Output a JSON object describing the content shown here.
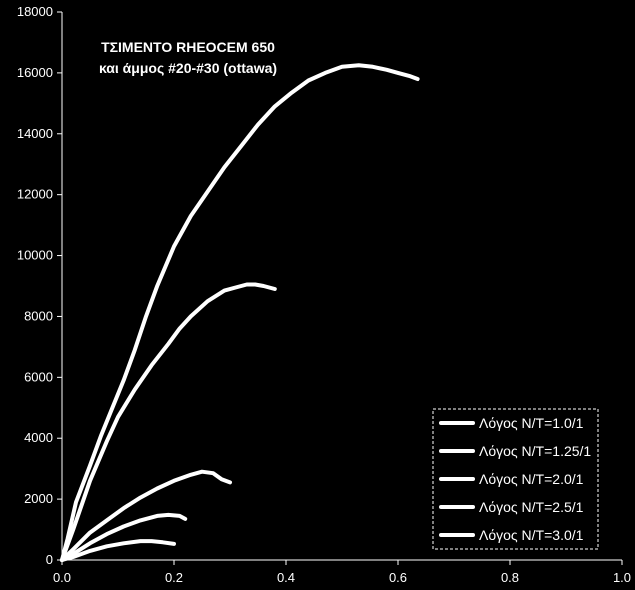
{
  "chart_data": {
    "type": "line",
    "title": [
      "ΤΣΙΜΕΝΤΟ RHEOCEM 650",
      "και άμμος #20-#30 (ottawa)"
    ],
    "xlabel": "",
    "ylabel": "",
    "xlim": [
      0.0,
      1.0
    ],
    "ylim": [
      0,
      18000
    ],
    "x_ticks": [
      "0.0",
      "0.2",
      "0.4",
      "0.6",
      "0.8",
      "1.0"
    ],
    "y_ticks": [
      "0",
      "2000",
      "4000",
      "6000",
      "8000",
      "10000",
      "12000",
      "14000",
      "16000",
      "18000"
    ],
    "grid": false,
    "legend_position": "bottom-right",
    "colors": {
      "background": "#000000",
      "foreground": "#ffffff"
    },
    "series": [
      {
        "name": "Λόγος Ν/Τ=1.0/1",
        "x": [
          0.0,
          0.01,
          0.025,
          0.05,
          0.07,
          0.09,
          0.11,
          0.13,
          0.15,
          0.17,
          0.2,
          0.23,
          0.26,
          0.29,
          0.32,
          0.35,
          0.38,
          0.41,
          0.44,
          0.47,
          0.5,
          0.53,
          0.555,
          0.58,
          0.6,
          0.62,
          0.635
        ],
        "y": [
          0,
          700,
          1900,
          3100,
          4100,
          5000,
          5900,
          6900,
          8000,
          9000,
          10300,
          11300,
          12100,
          12900,
          13600,
          14300,
          14900,
          15350,
          15750,
          16000,
          16200,
          16250,
          16200,
          16100,
          16000,
          15900,
          15800
        ]
      },
      {
        "name": "Λόγος Ν/Τ=1.25/1",
        "x": [
          0.0,
          0.02,
          0.05,
          0.08,
          0.1,
          0.13,
          0.16,
          0.19,
          0.21,
          0.23,
          0.26,
          0.29,
          0.31,
          0.33,
          0.345,
          0.36,
          0.38
        ],
        "y": [
          0,
          1000,
          2600,
          3900,
          4700,
          5600,
          6400,
          7100,
          7600,
          8000,
          8500,
          8850,
          8950,
          9050,
          9050,
          9000,
          8900
        ]
      },
      {
        "name": "Λόγος Ν/Τ=2.0/1",
        "x": [
          0.0,
          0.02,
          0.05,
          0.08,
          0.11,
          0.14,
          0.17,
          0.2,
          0.23,
          0.25,
          0.27,
          0.285,
          0.3
        ],
        "y": [
          0,
          350,
          900,
          1300,
          1700,
          2050,
          2350,
          2600,
          2800,
          2900,
          2850,
          2650,
          2550
        ]
      },
      {
        "name": "Λόγος Ν/Τ=2.5/1",
        "x": [
          0.0,
          0.02,
          0.05,
          0.08,
          0.11,
          0.14,
          0.17,
          0.19,
          0.21,
          0.22
        ],
        "y": [
          0,
          200,
          550,
          850,
          1100,
          1300,
          1450,
          1480,
          1450,
          1350
        ]
      },
      {
        "name": "Λόγος Ν/Τ=3.0/1",
        "x": [
          0.0,
          0.02,
          0.05,
          0.08,
          0.11,
          0.14,
          0.16,
          0.18,
          0.2
        ],
        "y": [
          0,
          100,
          300,
          450,
          550,
          620,
          620,
          580,
          530
        ]
      }
    ]
  }
}
